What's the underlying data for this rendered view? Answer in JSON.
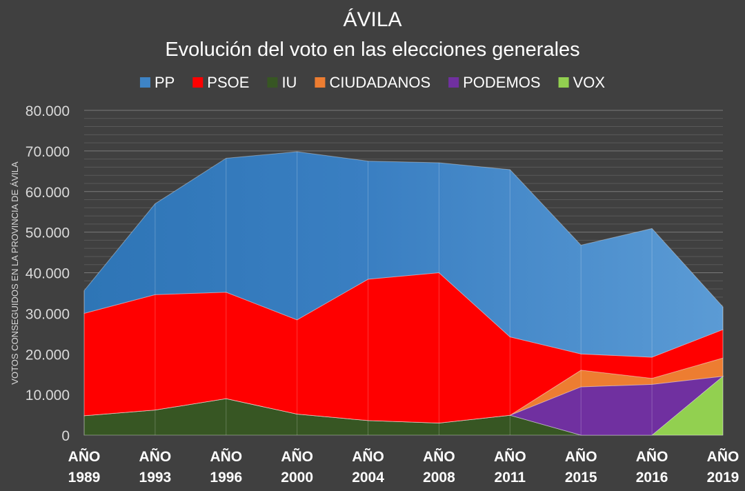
{
  "chart_data": {
    "type": "area",
    "stacked": true,
    "title": "ÁVILA",
    "subtitle": "Evolución del voto en las elecciones generales",
    "ylabel": "VOTOS CONSEGUIDOS EN LA PROVINCIA DE ÁVILA",
    "xlabel": "",
    "ylim": [
      0,
      80000
    ],
    "y_ticks": [
      0,
      10000,
      20000,
      30000,
      40000,
      50000,
      60000,
      70000,
      80000
    ],
    "y_tick_labels": [
      "0",
      "10.000",
      "20.000",
      "30.000",
      "40.000",
      "50.000",
      "60.000",
      "70.000",
      "80.000"
    ],
    "categories": [
      [
        "AÑO",
        "1989"
      ],
      [
        "AÑO",
        "1993"
      ],
      [
        "AÑO",
        "1996"
      ],
      [
        "AÑO",
        "2000"
      ],
      [
        "AÑO",
        "2004"
      ],
      [
        "AÑO",
        "2008"
      ],
      [
        "AÑO",
        "2011"
      ],
      [
        "AÑO",
        "2015"
      ],
      [
        "AÑO",
        "2016"
      ],
      [
        "AÑO",
        "2019"
      ]
    ],
    "grid": true,
    "legend_position": "top",
    "series": [
      {
        "name": "IU",
        "color": "#375623",
        "values": [
          4800,
          6200,
          9000,
          5200,
          3600,
          3000,
          4900,
          0,
          0,
          0
        ]
      },
      {
        "name": "VOX",
        "color": "#92D050",
        "values": [
          0,
          0,
          0,
          0,
          0,
          0,
          0,
          0,
          0,
          14500
        ]
      },
      {
        "name": "PODEMOS",
        "color": "#7030A0",
        "values": [
          0,
          0,
          0,
          0,
          0,
          0,
          0,
          11900,
          12500,
          0
        ]
      },
      {
        "name": "CIUDADANOS",
        "color": "#ED7D31",
        "values": [
          0,
          0,
          0,
          0,
          0,
          0,
          0,
          4100,
          1500,
          4500
        ]
      },
      {
        "name": "PSOE",
        "color": "#FF0000",
        "values": [
          25200,
          28400,
          26200,
          23200,
          34800,
          37000,
          19300,
          4000,
          5200,
          7000
        ]
      },
      {
        "name": "PP",
        "color": "#5B9BD5",
        "values": [
          5600,
          22400,
          33000,
          41400,
          29100,
          27100,
          41200,
          26800,
          31700,
          5600
        ]
      }
    ],
    "legend_order": [
      "PP",
      "PSOE",
      "IU",
      "CIUDADANOS",
      "PODEMOS",
      "VOX"
    ]
  }
}
